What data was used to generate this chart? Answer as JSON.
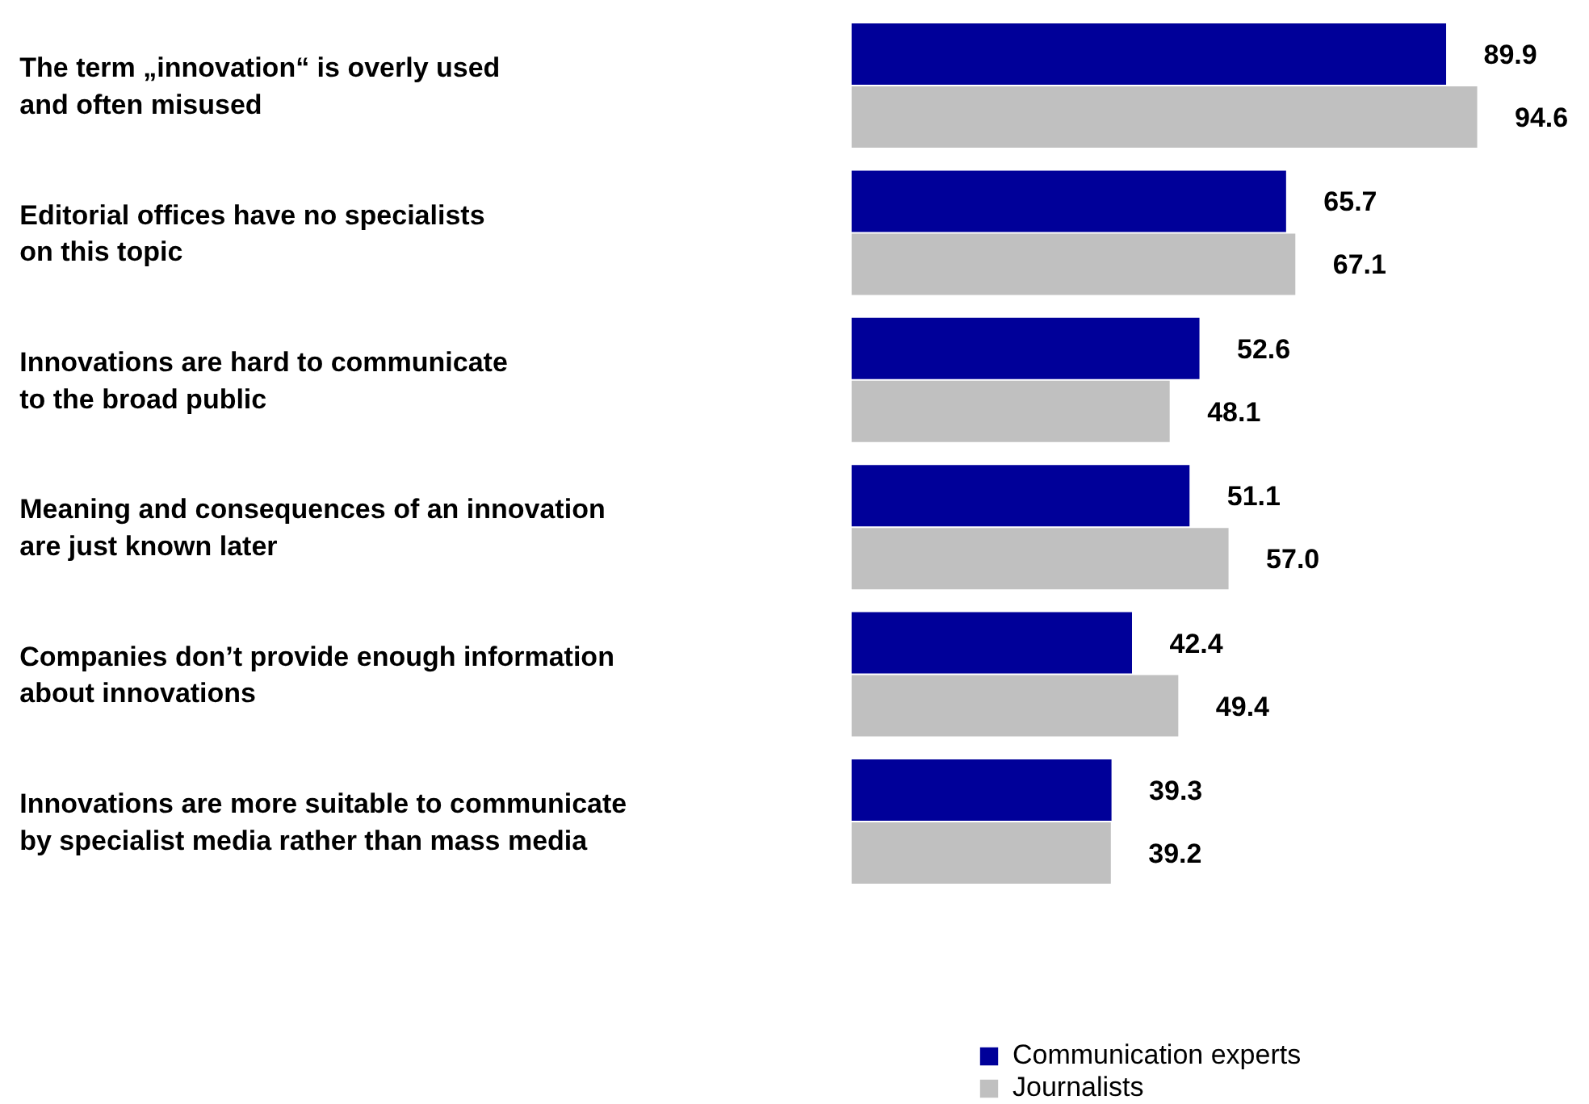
{
  "chart_data": {
    "type": "bar",
    "orientation": "horizontal",
    "legend": "bottom right",
    "categories": [
      "The term „innovation“ is overly used\nand often misused",
      "Editorial offices have no specialists\non this topic",
      "Innovations are hard to communicate\nto the broad public",
      "Meaning and consequences of an innovation\nare just known later",
      "Companies don’t provide enough information\nabout innovations",
      "Innovations are more suitable to communicate\nby specialist media rather than mass media"
    ],
    "series": [
      {
        "name": "Communication experts",
        "color": "#000099",
        "values": [
          89.9,
          65.7,
          52.6,
          51.1,
          42.4,
          39.3
        ],
        "value_labels": [
          "89.9",
          "65.7",
          "52.6",
          "51.1",
          "42.4",
          "39.3"
        ]
      },
      {
        "name": "Journalists",
        "color": "#c0c0c0",
        "values": [
          94.6,
          67.1,
          48.1,
          57.0,
          49.4,
          39.2
        ],
        "value_labels": [
          "94.6",
          "67.1",
          "48.1",
          "57.0",
          "49.4",
          "39.2"
        ]
      }
    ]
  }
}
